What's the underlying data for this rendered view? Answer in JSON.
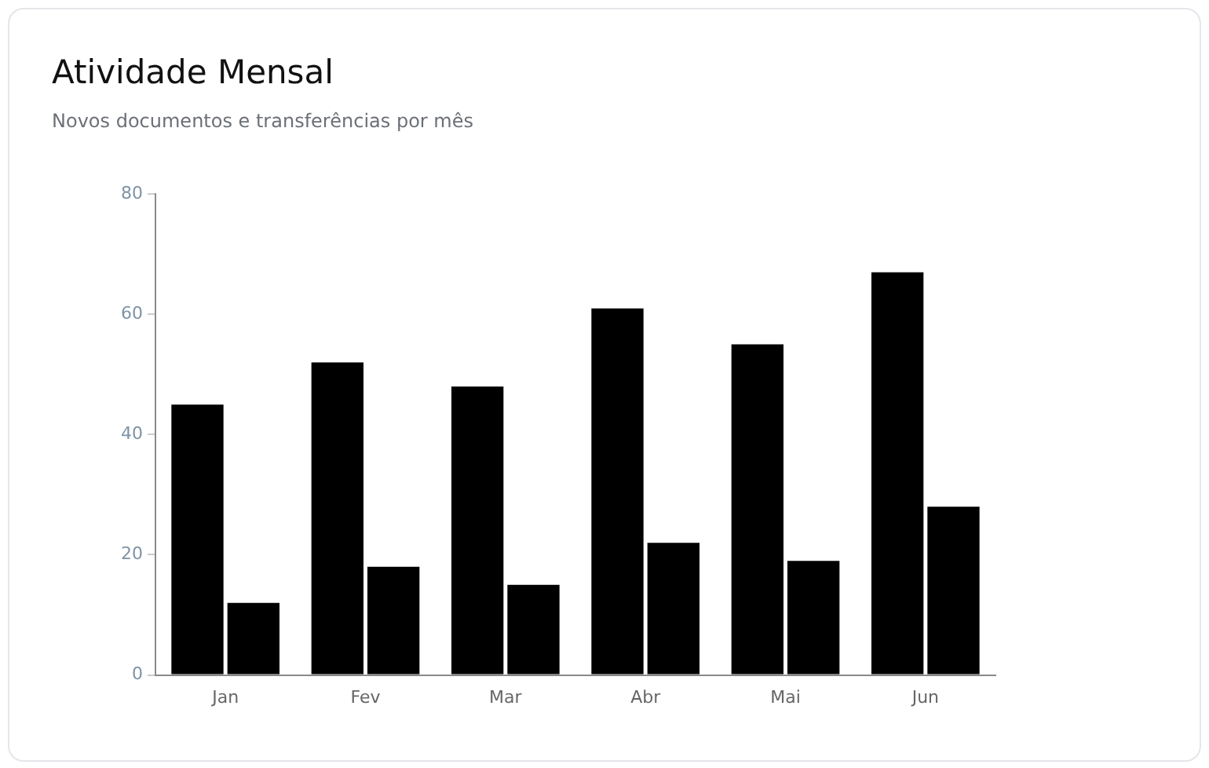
{
  "chart_data": {
    "type": "bar",
    "title": "Atividade Mensal",
    "subtitle": "Novos documentos e transferências por mês",
    "categories": [
      "Jan",
      "Fev",
      "Mar",
      "Abr",
      "Mai",
      "Jun"
    ],
    "series": [
      {
        "color": "#000000",
        "values": [
          45,
          52,
          48,
          61,
          55,
          67
        ]
      },
      {
        "color": "#000000",
        "values": [
          12,
          18,
          15,
          22,
          19,
          28
        ]
      }
    ],
    "ylim": [
      0,
      80
    ],
    "yticks": [
      0,
      20,
      40,
      60,
      80
    ],
    "grid": false,
    "legend": false
  }
}
